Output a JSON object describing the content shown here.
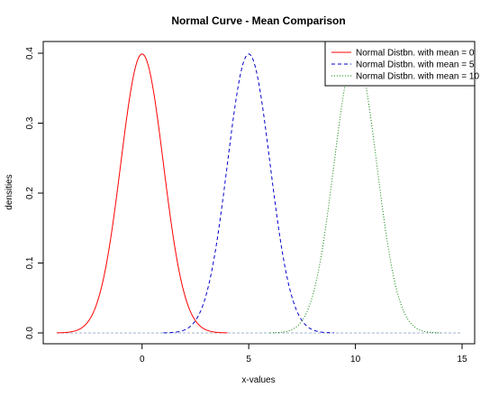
{
  "chart_data": {
    "type": "line",
    "title": "Normal Curve - Mean Comparison",
    "xlabel": "x-values",
    "ylabel": "densities",
    "xlim": [
      -4,
      15
    ],
    "ylim": [
      0,
      0.4
    ],
    "x_ticks": [
      0,
      5,
      10,
      15
    ],
    "y_ticks": [
      0.0,
      0.1,
      0.2,
      0.3,
      0.4
    ],
    "x_tick_labels": [
      "0",
      "5",
      "10",
      "15"
    ],
    "y_tick_labels": [
      "0.0",
      "0.1",
      "0.2",
      "0.3",
      "0.4"
    ],
    "grid": false,
    "legend_position": "top-right",
    "series": [
      {
        "name": "Normal Distbn. with mean = 0",
        "mean": 0,
        "sd": 1,
        "x_range": [
          -4,
          4
        ],
        "color": "#ff0000",
        "line_style": "solid"
      },
      {
        "name": "Normal Distbn. with mean = 5",
        "mean": 5,
        "sd": 1,
        "x_range": [
          1,
          9
        ],
        "color": "#0000cd",
        "line_style": "dashed"
      },
      {
        "name": "Normal Distbn. with mean = 10",
        "mean": 10,
        "sd": 1,
        "x_range": [
          6,
          14
        ],
        "color": "#008000",
        "line_style": "dotted"
      }
    ],
    "baseline": {
      "x_range": [
        -4,
        15
      ],
      "y": 0,
      "color": "#9fb6cd"
    }
  }
}
